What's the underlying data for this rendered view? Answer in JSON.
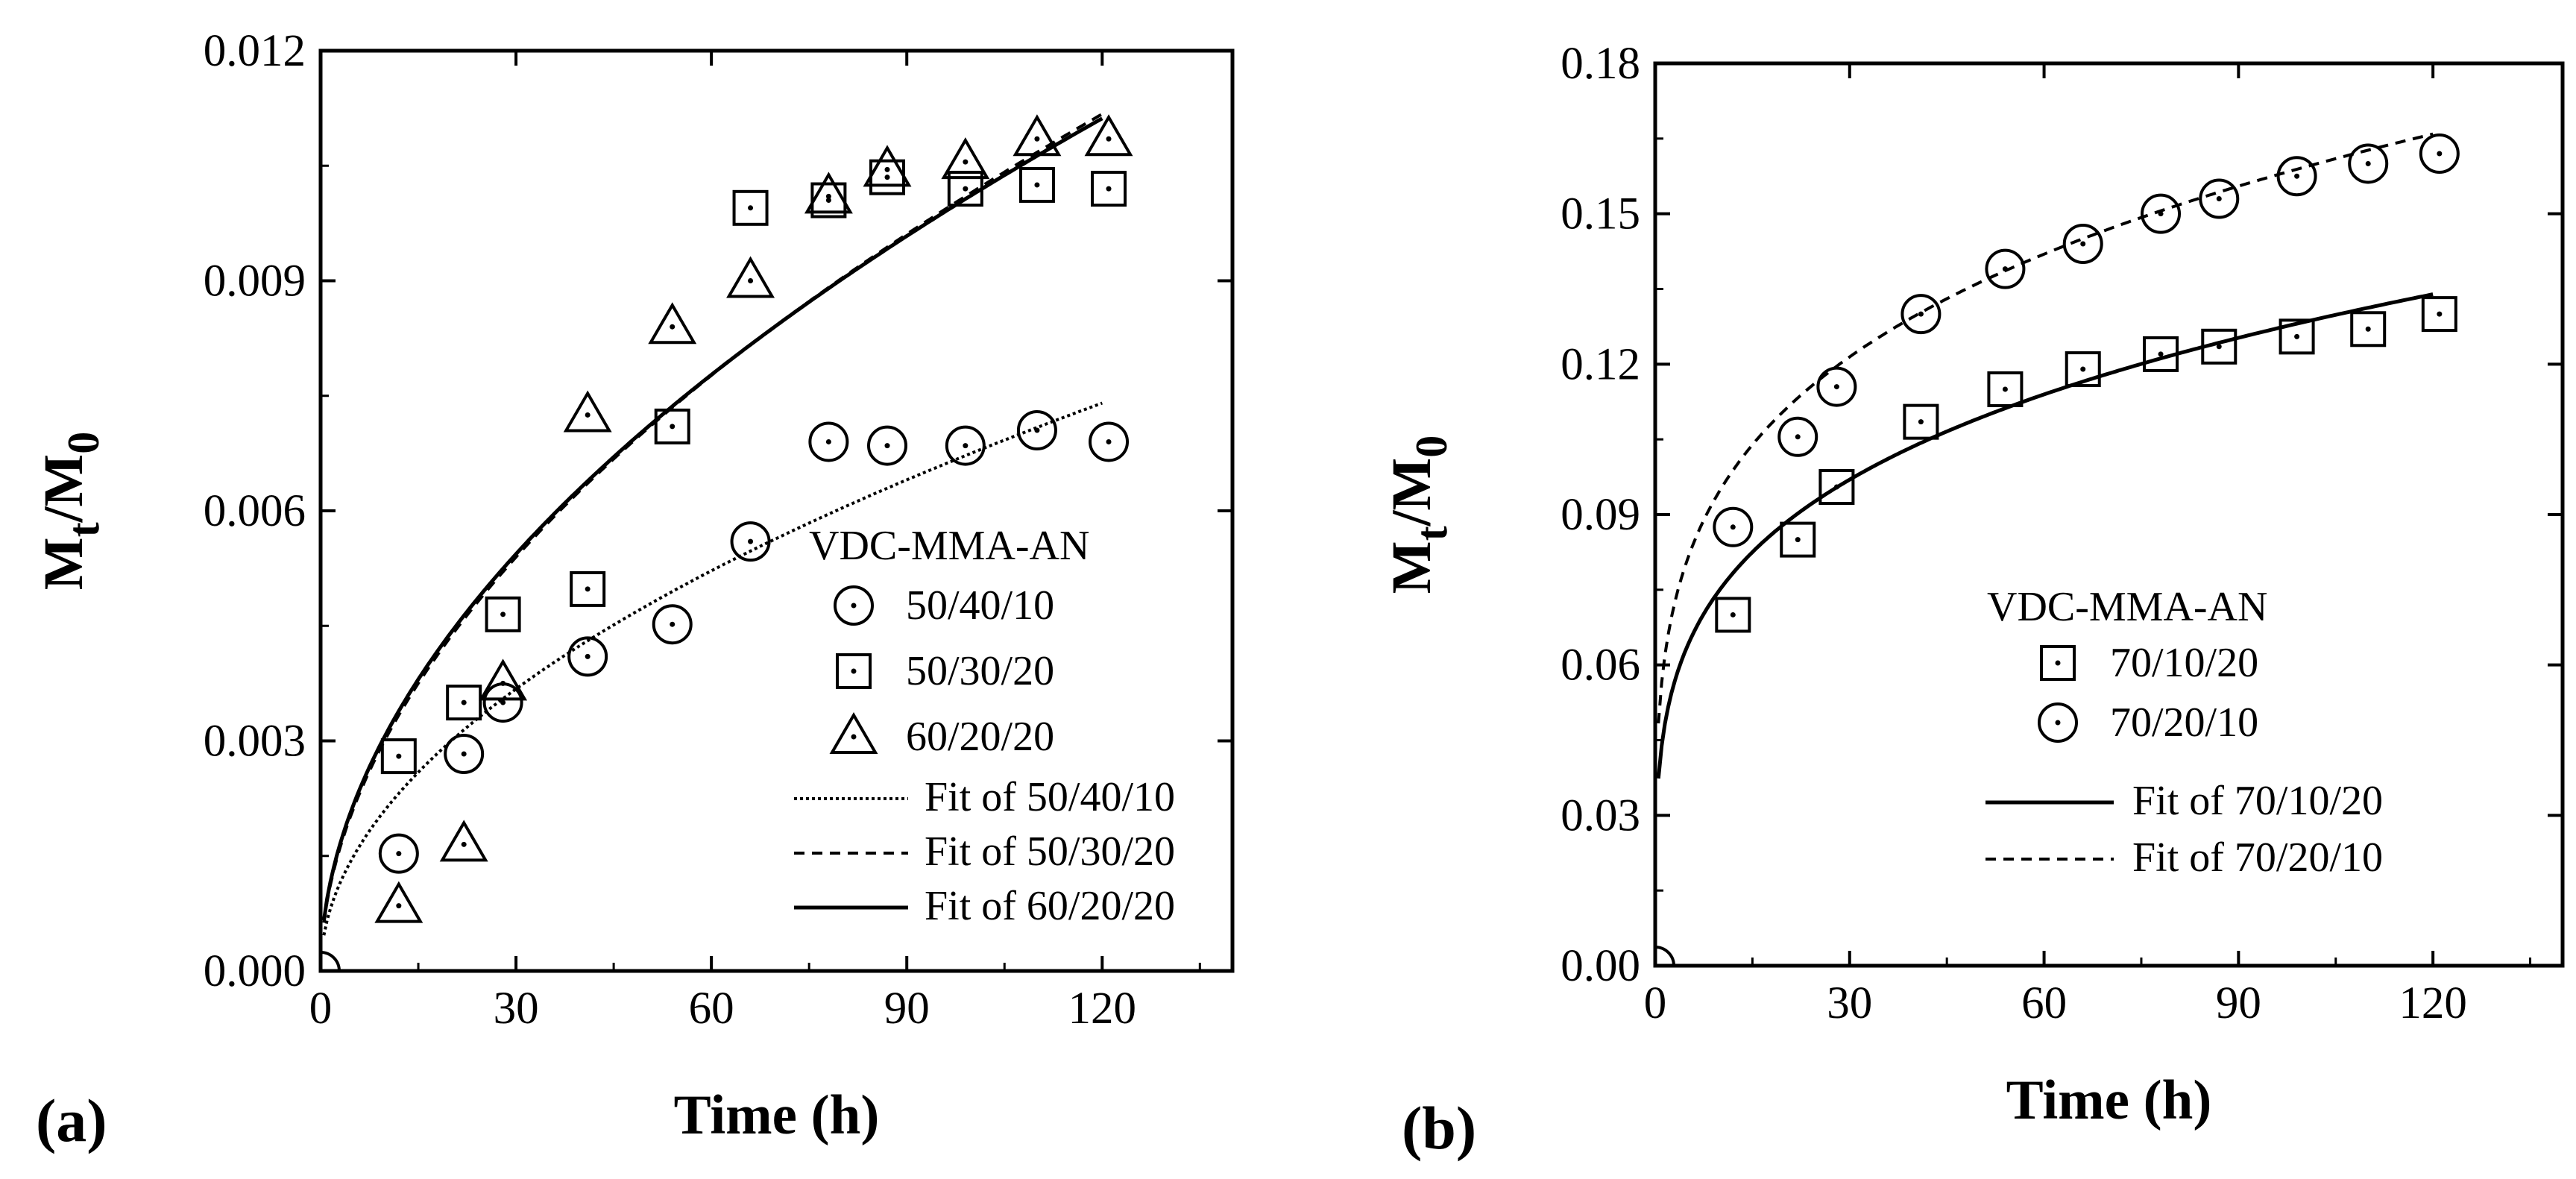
{
  "chart_data": [
    {
      "type": "scatter",
      "panel_label": "(a)",
      "xlabel": "Time (h)",
      "ylabel_main": "M",
      "ylabel_sub_num": "t",
      "ylabel_sep": "/M",
      "ylabel_sub_den": "0",
      "xlim": [
        0,
        140
      ],
      "ylim": [
        0,
        0.012
      ],
      "xticks": [
        0,
        30,
        60,
        90,
        120
      ],
      "xtick_labels": [
        "0",
        "30",
        "60",
        "90",
        "120"
      ],
      "yticks": [
        0,
        0.003,
        0.006,
        0.009,
        0.012
      ],
      "ytick_labels": [
        "0.000",
        "0.003",
        "0.006",
        "0.009",
        "0.012"
      ],
      "legend_title": "VDC-MMA-AN",
      "legend_position": "bottom-right",
      "series": [
        {
          "name": "50/40/10",
          "marker": "circle",
          "x": [
            12,
            22,
            28,
            41,
            54,
            66,
            78,
            87,
            99,
            110,
            121
          ],
          "y": [
            0.00153,
            0.00283,
            0.0035,
            0.0041,
            0.00452,
            0.0056,
            0.0069,
            0.00685,
            0.00685,
            0.00705,
            0.0069
          ]
        },
        {
          "name": "50/30/20",
          "marker": "square",
          "x": [
            12,
            22,
            28,
            41,
            54,
            66,
            78,
            87,
            99,
            110,
            121
          ],
          "y": [
            0.0028,
            0.0035,
            0.00465,
            0.00498,
            0.0071,
            0.00995,
            0.01005,
            0.01035,
            0.0102,
            0.01025,
            0.0102
          ]
        },
        {
          "name": "60/20/20",
          "marker": "triangle",
          "x": [
            12,
            22,
            28,
            41,
            54,
            66,
            78,
            87,
            99,
            110,
            121
          ],
          "y": [
            0.00085,
            0.00165,
            0.00375,
            0.00725,
            0.0084,
            0.009,
            0.0101,
            0.01045,
            0.01055,
            0.01085,
            0.01085
          ]
        }
      ],
      "fits": [
        {
          "name": "Fit of 50/40/10",
          "style": "dotted",
          "model": "power",
          "a": 0.00066,
          "n": 0.505
        },
        {
          "name": "Fit of 50/30/20",
          "style": "dashed",
          "model": "power",
          "a": 0.000905,
          "n": 0.525
        },
        {
          "name": "Fit of 60/20/20",
          "style": "solid",
          "model": "power",
          "a": 0.00094,
          "n": 0.516
        }
      ]
    },
    {
      "type": "scatter",
      "panel_label": "(b)",
      "xlabel": "Time (h)",
      "ylabel_main": "M",
      "ylabel_sub_num": "t",
      "ylabel_sep": "/M",
      "ylabel_sub_den": "0",
      "xlim": [
        0,
        140
      ],
      "ylim": [
        0,
        0.18
      ],
      "xticks": [
        0,
        30,
        60,
        90,
        120
      ],
      "xtick_labels": [
        "0",
        "30",
        "60",
        "90",
        "120"
      ],
      "yticks": [
        0,
        0.03,
        0.06,
        0.09,
        0.12,
        0.15,
        0.18
      ],
      "ytick_labels": [
        "0.00",
        "0.03",
        "0.06",
        "0.09",
        "0.12",
        "0.15",
        "0.18"
      ],
      "legend_title": "VDC-MMA-AN",
      "legend_position": "bottom-right",
      "series": [
        {
          "name": "70/10/20",
          "marker": "square",
          "x": [
            12,
            22,
            28,
            41,
            54,
            66,
            78,
            87,
            99,
            110,
            121
          ],
          "y": [
            0.07,
            0.085,
            0.0955,
            0.1085,
            0.115,
            0.119,
            0.122,
            0.1235,
            0.1255,
            0.127,
            0.13
          ]
        },
        {
          "name": "70/20/10",
          "marker": "circle",
          "x": [
            12,
            22,
            28,
            41,
            54,
            66,
            78,
            87,
            99,
            110,
            121
          ],
          "y": [
            0.0875,
            0.1055,
            0.1155,
            0.13,
            0.139,
            0.144,
            0.15,
            0.153,
            0.1575,
            0.16,
            0.162
          ]
        }
      ],
      "fits": [
        {
          "name": "Fit of 70/10/20",
          "style": "solid",
          "model": "power",
          "a": 0.0439,
          "n": 0.233
        },
        {
          "name": "Fit of 70/20/10",
          "style": "dashed",
          "model": "power",
          "a": 0.0565,
          "n": 0.225
        }
      ]
    }
  ]
}
